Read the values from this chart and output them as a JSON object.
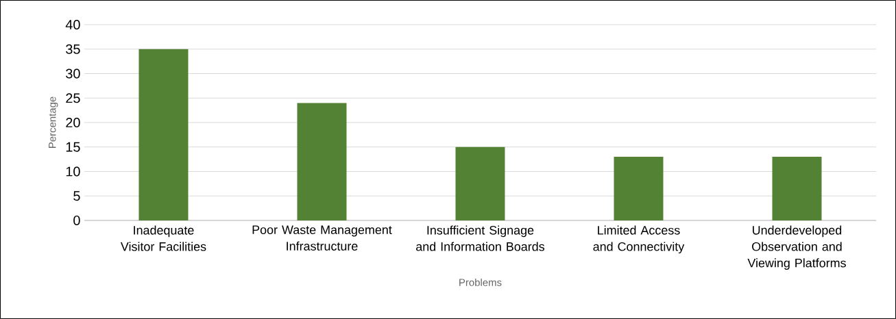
{
  "chart_data": {
    "type": "bar",
    "xlabel": "Problems",
    "ylabel": "Percentage",
    "categories": [
      "Inadequate Visitor Facilities",
      "Poor Waste Management Infrastructure",
      "Insufficient Signage and Information Boards",
      "Limited Access and Connectivity",
      "Underdeveloped Observation and Viewing Platforms"
    ],
    "values": [
      35,
      24,
      15,
      13,
      13
    ],
    "color": "#548235",
    "ylim": [
      0,
      40
    ],
    "yticks": [
      0,
      5,
      10,
      15,
      20,
      25,
      30,
      35,
      40
    ],
    "grid": "y"
  }
}
